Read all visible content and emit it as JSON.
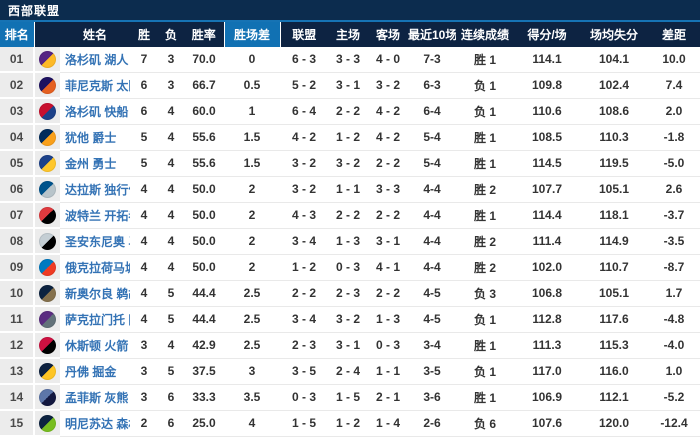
{
  "title": "西部联盟",
  "colors": {
    "title_bar_bg": "#0C2C4E",
    "accent_line": "#1673B4",
    "header_bg": "#0D2342",
    "header_highlight_bg": "#1171B3",
    "team_link": "#3473B5",
    "rank_column_bg": "#ECECEC",
    "cell_text": "#333333"
  },
  "columns": [
    {
      "key": "rank",
      "label": "排名"
    },
    {
      "key": "team",
      "label": "姓名"
    },
    {
      "key": "wins",
      "label": "胜"
    },
    {
      "key": "losses",
      "label": "负"
    },
    {
      "key": "pct",
      "label": "胜率"
    },
    {
      "key": "gb",
      "label": "胜场差"
    },
    {
      "key": "conf",
      "label": "联盟"
    },
    {
      "key": "home",
      "label": "主场"
    },
    {
      "key": "away",
      "label": "客场"
    },
    {
      "key": "last10",
      "label": "最近10场"
    },
    {
      "key": "streak",
      "label": "连续成绩"
    },
    {
      "key": "ppg",
      "label": "得分/场"
    },
    {
      "key": "oppg",
      "label": "场均失分"
    },
    {
      "key": "diff",
      "label": "差距"
    }
  ],
  "rows": [
    {
      "rank": "01",
      "team": "洛杉矶 湖人",
      "logo_icon": "lakers-logo-icon",
      "logo_colors": [
        "#552583",
        "#FDB927"
      ],
      "wins": "7",
      "losses": "3",
      "pct": "70.0",
      "gb": "0",
      "conf": "6 - 3",
      "home": "3 - 3",
      "away": "4 - 0",
      "last10": "7-3",
      "streak": "胜 1",
      "ppg": "114.1",
      "oppg": "104.1",
      "diff": "10.0"
    },
    {
      "rank": "02",
      "team": "菲尼克斯 太阳",
      "logo_icon": "suns-logo-icon",
      "logo_colors": [
        "#1D1160",
        "#E56020"
      ],
      "wins": "6",
      "losses": "3",
      "pct": "66.7",
      "gb": "0.5",
      "conf": "5 - 2",
      "home": "3 - 1",
      "away": "3 - 2",
      "last10": "6-3",
      "streak": "负 1",
      "ppg": "109.8",
      "oppg": "102.4",
      "diff": "7.4"
    },
    {
      "rank": "03",
      "team": "洛杉矶 快船",
      "logo_icon": "clippers-logo-icon",
      "logo_colors": [
        "#C8102E",
        "#1D428A"
      ],
      "wins": "6",
      "losses": "4",
      "pct": "60.0",
      "gb": "1",
      "conf": "6 - 4",
      "home": "2 - 2",
      "away": "4 - 2",
      "last10": "6-4",
      "streak": "负 1",
      "ppg": "110.6",
      "oppg": "108.6",
      "diff": "2.0"
    },
    {
      "rank": "04",
      "team": "犹他 爵士",
      "logo_icon": "jazz-logo-icon",
      "logo_colors": [
        "#002B5C",
        "#F9A01B"
      ],
      "wins": "5",
      "losses": "4",
      "pct": "55.6",
      "gb": "1.5",
      "conf": "4 - 2",
      "home": "1 - 2",
      "away": "4 - 2",
      "last10": "5-4",
      "streak": "胜 1",
      "ppg": "108.5",
      "oppg": "110.3",
      "diff": "-1.8"
    },
    {
      "rank": "05",
      "team": "金州 勇士",
      "logo_icon": "warriors-logo-icon",
      "logo_colors": [
        "#1D428A",
        "#FFC72C"
      ],
      "wins": "5",
      "losses": "4",
      "pct": "55.6",
      "gb": "1.5",
      "conf": "3 - 2",
      "home": "3 - 2",
      "away": "2 - 2",
      "last10": "5-4",
      "streak": "胜 1",
      "ppg": "114.5",
      "oppg": "119.5",
      "diff": "-5.0"
    },
    {
      "rank": "06",
      "team": "达拉斯 独行侠",
      "logo_icon": "mavericks-logo-icon",
      "logo_colors": [
        "#00538C",
        "#B8C4CA"
      ],
      "wins": "4",
      "losses": "4",
      "pct": "50.0",
      "gb": "2",
      "conf": "3 - 2",
      "home": "1 - 1",
      "away": "3 - 3",
      "last10": "4-4",
      "streak": "胜 2",
      "ppg": "107.7",
      "oppg": "105.1",
      "diff": "2.6"
    },
    {
      "rank": "07",
      "team": "波特兰 开拓者",
      "logo_icon": "trail-blazers-logo-icon",
      "logo_colors": [
        "#E03A3E",
        "#000000"
      ],
      "wins": "4",
      "losses": "4",
      "pct": "50.0",
      "gb": "2",
      "conf": "4 - 3",
      "home": "2 - 2",
      "away": "2 - 2",
      "last10": "4-4",
      "streak": "胜 1",
      "ppg": "114.4",
      "oppg": "118.1",
      "diff": "-3.7"
    },
    {
      "rank": "08",
      "team": "圣安东尼奥 马刺",
      "logo_icon": "spurs-logo-icon",
      "logo_colors": [
        "#C4CED4",
        "#000000"
      ],
      "wins": "4",
      "losses": "4",
      "pct": "50.0",
      "gb": "2",
      "conf": "3 - 4",
      "home": "1 - 3",
      "away": "3 - 1",
      "last10": "4-4",
      "streak": "胜 2",
      "ppg": "111.4",
      "oppg": "114.9",
      "diff": "-3.5"
    },
    {
      "rank": "09",
      "team": "俄克拉荷马城 雷霆",
      "logo_icon": "thunder-logo-icon",
      "logo_colors": [
        "#007AC1",
        "#EF3B24"
      ],
      "wins": "4",
      "losses": "4",
      "pct": "50.0",
      "gb": "2",
      "conf": "1 - 2",
      "home": "0 - 3",
      "away": "4 - 1",
      "last10": "4-4",
      "streak": "胜 2",
      "ppg": "102.0",
      "oppg": "110.7",
      "diff": "-8.7"
    },
    {
      "rank": "10",
      "team": "新奥尔良 鹈鹕",
      "logo_icon": "pelicans-logo-icon",
      "logo_colors": [
        "#0C2340",
        "#85714D"
      ],
      "wins": "4",
      "losses": "5",
      "pct": "44.4",
      "gb": "2.5",
      "conf": "2 - 2",
      "home": "2 - 3",
      "away": "2 - 2",
      "last10": "4-5",
      "streak": "负 3",
      "ppg": "106.8",
      "oppg": "105.1",
      "diff": "1.7"
    },
    {
      "rank": "11",
      "team": "萨克拉门托 国王",
      "logo_icon": "kings-logo-icon",
      "logo_colors": [
        "#5A2D81",
        "#63727A"
      ],
      "wins": "4",
      "losses": "5",
      "pct": "44.4",
      "gb": "2.5",
      "conf": "3 - 4",
      "home": "3 - 2",
      "away": "1 - 3",
      "last10": "4-5",
      "streak": "负 1",
      "ppg": "112.8",
      "oppg": "117.6",
      "diff": "-4.8"
    },
    {
      "rank": "12",
      "team": "休斯顿 火箭",
      "logo_icon": "rockets-logo-icon",
      "logo_colors": [
        "#CE1141",
        "#000000"
      ],
      "wins": "3",
      "losses": "4",
      "pct": "42.9",
      "gb": "2.5",
      "conf": "2 - 3",
      "home": "3 - 1",
      "away": "0 - 3",
      "last10": "3-4",
      "streak": "胜 1",
      "ppg": "111.3",
      "oppg": "115.3",
      "diff": "-4.0"
    },
    {
      "rank": "13",
      "team": "丹佛 掘金",
      "logo_icon": "nuggets-logo-icon",
      "logo_colors": [
        "#0E2240",
        "#FEC524"
      ],
      "wins": "3",
      "losses": "5",
      "pct": "37.5",
      "gb": "3",
      "conf": "3 - 5",
      "home": "2 - 4",
      "away": "1 - 1",
      "last10": "3-5",
      "streak": "负 1",
      "ppg": "117.0",
      "oppg": "116.0",
      "diff": "1.0"
    },
    {
      "rank": "14",
      "team": "孟菲斯 灰熊",
      "logo_icon": "grizzlies-logo-icon",
      "logo_colors": [
        "#5D76A9",
        "#12173F"
      ],
      "wins": "3",
      "losses": "6",
      "pct": "33.3",
      "gb": "3.5",
      "conf": "0 - 3",
      "home": "1 - 5",
      "away": "2 - 1",
      "last10": "3-6",
      "streak": "胜 1",
      "ppg": "106.9",
      "oppg": "112.1",
      "diff": "-5.2"
    },
    {
      "rank": "15",
      "team": "明尼苏达 森林狼",
      "logo_icon": "timberwolves-logo-icon",
      "logo_colors": [
        "#0C2340",
        "#78BE20"
      ],
      "wins": "2",
      "losses": "6",
      "pct": "25.0",
      "gb": "4",
      "conf": "1 - 5",
      "home": "1 - 2",
      "away": "1 - 4",
      "last10": "2-6",
      "streak": "负 6",
      "ppg": "107.6",
      "oppg": "120.0",
      "diff": "-12.4"
    }
  ]
}
